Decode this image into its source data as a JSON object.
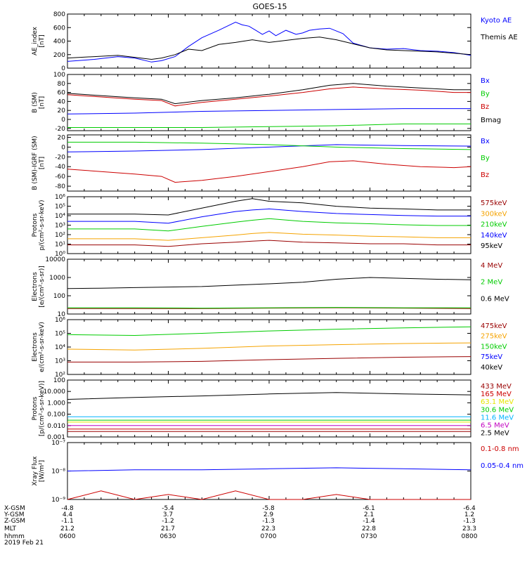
{
  "title": "GOES-15",
  "colors": {
    "black": "#000000",
    "blue": "#0000ff",
    "red": "#cc0000",
    "green": "#00cc00",
    "orange": "#f5a300",
    "yellow": "#e6e600",
    "cyan": "#00b4ff",
    "magenta": "#c000c0",
    "darkred": "#990000"
  },
  "footer": {
    "row_labels": [
      "X-GSM",
      "Y-GSM",
      "Z-GSM",
      "MLT",
      "hhmm",
      "2019 Feb 21"
    ],
    "columns": [
      {
        "values": [
          "-4.8",
          "4.4",
          "-1.1",
          "21.2",
          "0600"
        ]
      },
      {
        "values": [
          "-5.4",
          "3.7",
          "-1.2",
          "21.7",
          "0630"
        ]
      },
      {
        "values": [
          "-5.8",
          "2.9",
          "-1.3",
          "22.3",
          "0700"
        ]
      },
      {
        "values": [
          "-6.1",
          "2.1",
          "-1.4",
          "22.8",
          "0730"
        ]
      },
      {
        "values": [
          "-6.4",
          "1.2",
          "-1.3",
          "23.3",
          "0800"
        ]
      }
    ]
  },
  "chart_data": [
    {
      "type": "line",
      "ylabel": [
        "AE_index",
        "[nT]"
      ],
      "ylim": [
        0,
        800
      ],
      "yticks": [
        "0",
        "200",
        "400",
        "600",
        "800"
      ],
      "series": [
        {
          "name": "Kyoto AE",
          "color": "blue",
          "x": [
            0,
            8,
            15,
            20,
            25,
            28,
            32,
            36,
            40,
            45,
            50,
            52,
            54,
            56,
            58,
            60,
            62,
            65,
            68,
            70,
            72,
            75,
            78,
            82,
            85,
            90,
            95,
            100,
            105,
            110,
            115,
            120
          ],
          "values": [
            100,
            130,
            170,
            150,
            90,
            110,
            170,
            320,
            450,
            560,
            680,
            640,
            620,
            560,
            500,
            550,
            480,
            560,
            500,
            520,
            560,
            580,
            590,
            510,
            370,
            300,
            280,
            290,
            260,
            250,
            230,
            190
          ]
        },
        {
          "name": "Themis AE",
          "color": "black",
          "x": [
            0,
            8,
            15,
            20,
            25,
            28,
            32,
            36,
            40,
            45,
            50,
            55,
            60,
            65,
            70,
            75,
            80,
            85,
            90,
            95,
            100,
            105,
            110,
            115,
            120
          ],
          "values": [
            150,
            170,
            190,
            160,
            130,
            150,
            200,
            280,
            260,
            350,
            380,
            420,
            380,
            410,
            440,
            460,
            420,
            360,
            300,
            270,
            260,
            250,
            240,
            220,
            200
          ]
        }
      ]
    },
    {
      "type": "line",
      "ylabel": [
        "B (SM)",
        "[nT]"
      ],
      "ylim": [
        -25,
        100
      ],
      "yticks": [
        "-20",
        "0",
        "20",
        "40",
        "60",
        "80",
        "100"
      ],
      "series": [
        {
          "name": "Bx",
          "color": "blue",
          "x": [
            0,
            20,
            40,
            60,
            80,
            100,
            120
          ],
          "values": [
            12,
            14,
            18,
            20,
            22,
            24,
            24
          ]
        },
        {
          "name": "By",
          "color": "green",
          "x": [
            0,
            20,
            40,
            60,
            80,
            100,
            120
          ],
          "values": [
            -18,
            -18,
            -18,
            -16,
            -14,
            -10,
            -10
          ]
        },
        {
          "name": "Bz",
          "color": "red",
          "x": [
            0,
            10,
            20,
            28,
            32,
            40,
            50,
            60,
            70,
            78,
            85,
            95,
            105,
            115,
            120
          ],
          "values": [
            55,
            50,
            45,
            42,
            30,
            38,
            45,
            52,
            60,
            68,
            72,
            68,
            65,
            60,
            60
          ]
        },
        {
          "name": "Bmag",
          "color": "black",
          "x": [
            0,
            10,
            20,
            28,
            32,
            40,
            50,
            60,
            70,
            78,
            85,
            95,
            105,
            115,
            120
          ],
          "values": [
            58,
            53,
            48,
            45,
            35,
            42,
            48,
            56,
            66,
            76,
            80,
            74,
            70,
            66,
            66
          ]
        }
      ]
    },
    {
      "type": "line",
      "ylabel": [
        "B (SM)-IGRF (SM)",
        "[nT]"
      ],
      "ylim": [
        -90,
        25
      ],
      "yticks": [
        "-80",
        "-60",
        "-40",
        "-20",
        "0",
        "20"
      ],
      "series": [
        {
          "name": "Bx",
          "color": "blue",
          "x": [
            0,
            20,
            40,
            60,
            80,
            100,
            120
          ],
          "values": [
            -10,
            -8,
            -5,
            0,
            5,
            3,
            2
          ]
        },
        {
          "name": "By",
          "color": "green",
          "x": [
            0,
            20,
            40,
            60,
            80,
            100,
            120
          ],
          "values": [
            10,
            10,
            8,
            5,
            0,
            -3,
            -5
          ]
        },
        {
          "name": "Bz",
          "color": "red",
          "x": [
            0,
            10,
            20,
            28,
            32,
            40,
            50,
            60,
            70,
            78,
            85,
            95,
            105,
            115,
            120
          ],
          "values": [
            -45,
            -50,
            -55,
            -60,
            -72,
            -68,
            -60,
            -50,
            -40,
            -30,
            -28,
            -35,
            -40,
            -42,
            -40
          ]
        }
      ]
    },
    {
      "type": "line",
      "yscale": "log",
      "ylabel": [
        "Protons",
        "p/(cm²-s-sr-keV)"
      ],
      "ylim": [
        0.3,
        1000000
      ],
      "yticks": [
        "10⁰",
        "10¹",
        "10²",
        "10³",
        "10⁴",
        "10⁵",
        "10⁶"
      ],
      "series": [
        {
          "name": "575keV",
          "color": "darkred",
          "x": [
            0,
            20,
            30,
            40,
            50,
            55,
            60,
            70,
            80,
            90,
            100,
            110,
            120
          ],
          "values": [
            3,
            3,
            2,
            4,
            6,
            8,
            10,
            6,
            5,
            4,
            4,
            3,
            3
          ]
        },
        {
          "name": "300keV",
          "color": "orange",
          "x": [
            0,
            20,
            30,
            40,
            50,
            55,
            60,
            70,
            80,
            90,
            100,
            110,
            120
          ],
          "values": [
            15,
            15,
            10,
            20,
            40,
            60,
            80,
            50,
            40,
            30,
            25,
            20,
            20
          ]
        },
        {
          "name": "210keV",
          "color": "green",
          "x": [
            0,
            20,
            30,
            40,
            50,
            55,
            60,
            70,
            80,
            90,
            100,
            110,
            120
          ],
          "values": [
            200,
            200,
            120,
            400,
            1200,
            2000,
            3000,
            1500,
            1000,
            800,
            600,
            500,
            500
          ]
        },
        {
          "name": "140keV",
          "color": "blue",
          "x": [
            0,
            20,
            30,
            40,
            50,
            55,
            60,
            70,
            80,
            90,
            100,
            110,
            120
          ],
          "values": [
            1500,
            1500,
            900,
            5000,
            20000,
            30000,
            40000,
            20000,
            12000,
            9000,
            7000,
            6000,
            6000
          ]
        },
        {
          "name": "95keV",
          "color": "black",
          "x": [
            0,
            20,
            30,
            40,
            50,
            55,
            60,
            70,
            80,
            90,
            100,
            110,
            120
          ],
          "values": [
            10000,
            10000,
            8000,
            50000,
            300000,
            600000,
            300000,
            200000,
            80000,
            50000,
            40000,
            30000,
            30000
          ]
        }
      ]
    },
    {
      "type": "line",
      "yscale": "log",
      "ylabel": [
        "Electrons",
        "[e/(cm²-s-sr)]"
      ],
      "ylim": [
        10,
        10000
      ],
      "yticks": [
        "10",
        "100",
        "1000",
        "10000"
      ],
      "series": [
        {
          "name": "4 MeV",
          "color": "darkred",
          "x": [
            0,
            20,
            40,
            60,
            80,
            100,
            120
          ],
          "values": [
            20,
            20,
            20,
            21,
            22,
            21,
            20
          ]
        },
        {
          "name": "2 MeV",
          "color": "green",
          "x": [
            0,
            20,
            40,
            60,
            80,
            100,
            120
          ],
          "values": [
            22,
            22,
            21,
            22,
            23,
            22,
            22
          ]
        },
        {
          "name": "0.6 MeV",
          "color": "black",
          "x": [
            0,
            10,
            20,
            30,
            40,
            50,
            60,
            70,
            80,
            90,
            100,
            110,
            120
          ],
          "values": [
            250,
            260,
            280,
            300,
            320,
            380,
            450,
            550,
            800,
            1000,
            900,
            800,
            750
          ]
        }
      ]
    },
    {
      "type": "line",
      "yscale": "log",
      "ylabel": [
        "Electrons",
        "e/(cm²-s-sr-keV)"
      ],
      "ylim": [
        100,
        1000000
      ],
      "yticks": [
        "10²",
        "10³",
        "10⁴",
        "10⁵",
        "10⁶"
      ],
      "series": [
        {
          "name": "475keV",
          "color": "darkred",
          "x": [
            0,
            20,
            40,
            60,
            80,
            100,
            120
          ],
          "values": [
            800,
            800,
            900,
            1200,
            1500,
            1800,
            2000
          ]
        },
        {
          "name": "275keV",
          "color": "orange",
          "x": [
            0,
            20,
            40,
            60,
            80,
            100,
            120
          ],
          "values": [
            7000,
            6000,
            8000,
            12000,
            15000,
            18000,
            20000
          ]
        },
        {
          "name": "150keV",
          "color": "green",
          "x": [
            0,
            20,
            40,
            60,
            80,
            100,
            120
          ],
          "values": [
            80000,
            70000,
            100000,
            150000,
            200000,
            250000,
            300000
          ]
        },
        {
          "name": "75keV",
          "color": "blue",
          "x": [
            0,
            120
          ],
          "values": [
            null,
            null
          ]
        },
        {
          "name": "40keV",
          "color": "black",
          "x": [
            0,
            120
          ],
          "values": [
            null,
            null
          ]
        }
      ]
    },
    {
      "type": "line",
      "yscale": "log",
      "ylabel": [
        "Protons",
        "[p/(cm²-s-sr-keV)]"
      ],
      "ylim": [
        0.001,
        100
      ],
      "yticks": [
        "0.001",
        "0.010",
        "0.100",
        "1.000",
        "10.000",
        "100"
      ],
      "series": [
        {
          "name": "433 MeV",
          "color": "darkred",
          "x": [
            0,
            120
          ],
          "values": [
            0.003,
            0.003
          ]
        },
        {
          "name": "165 MeV",
          "color": "red",
          "x": [
            0,
            120
          ],
          "values": [
            0.005,
            0.005
          ]
        },
        {
          "name": "63.1 MeV",
          "color": "yellow",
          "x": [
            0,
            120
          ],
          "values": [
            0.02,
            0.02
          ]
        },
        {
          "name": "30.6 MeV",
          "color": "green",
          "x": [
            0,
            120
          ],
          "values": [
            0.03,
            0.03
          ]
        },
        {
          "name": "11.6 MeV",
          "color": "cyan",
          "x": [
            0,
            120
          ],
          "values": [
            0.06,
            0.06
          ]
        },
        {
          "name": "6.5 MeV",
          "color": "magenta",
          "x": [
            0,
            120
          ],
          "values": [
            0.01,
            0.01
          ]
        },
        {
          "name": "2.5 MeV",
          "color": "black",
          "x": [
            0,
            20,
            40,
            60,
            80,
            100,
            120
          ],
          "values": [
            2,
            3,
            4,
            6,
            8,
            6,
            5
          ]
        }
      ]
    },
    {
      "type": "line",
      "yscale": "log",
      "ylabel": [
        "Xray Flux",
        "[W/m²]"
      ],
      "ylim": [
        1e-09,
        1e-07
      ],
      "yticks": [
        "10⁻⁹",
        "10⁻⁸",
        "10⁻⁷"
      ],
      "series": [
        {
          "name": "0.1-0.8 nm",
          "color": "red",
          "x": [
            0,
            10,
            20,
            30,
            40,
            50,
            60,
            70,
            80,
            90,
            100,
            110,
            120
          ],
          "values": [
            1e-09,
            2e-09,
            1e-09,
            1.5e-09,
            1e-09,
            2e-09,
            1e-09,
            1e-09,
            1.5e-09,
            1e-09,
            1e-09,
            1e-09,
            1e-09
          ]
        },
        {
          "name": "0.05-0.4 nm",
          "color": "blue",
          "x": [
            0,
            20,
            40,
            60,
            80,
            100,
            120
          ],
          "values": [
            1e-08,
            1.1e-08,
            1.1e-08,
            1.2e-08,
            1.3e-08,
            1.2e-08,
            1.1e-08
          ]
        }
      ]
    }
  ]
}
